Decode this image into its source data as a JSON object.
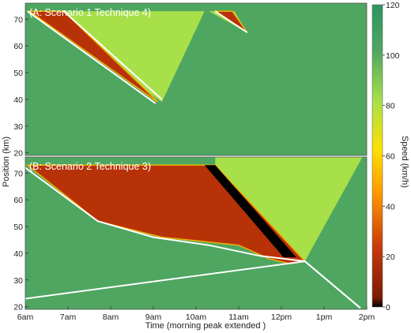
{
  "chart_data": [
    {
      "type": "heatmap",
      "label": "(A: Scenario 1 Technique 4)",
      "ylim": [
        19,
        76
      ],
      "yticks": [
        20,
        30,
        40,
        50,
        60,
        70
      ],
      "colors": {
        "free": "#4ea661",
        "queue": "#a8e04a",
        "jam": "#b83208"
      },
      "queue_regions": [
        {
          "points": [
            [
              6.25,
              73
            ],
            [
              9.2,
              39
            ],
            [
              10.2,
              73
            ]
          ]
        },
        {
          "points": [
            [
              10.3,
              73
            ],
            [
              11.2,
              65
            ],
            [
              10.9,
              73
            ]
          ]
        }
      ],
      "jam_regions": [
        {
          "points": [
            [
              6.1,
              73
            ],
            [
              6.9,
              73
            ],
            [
              9.05,
              40
            ],
            [
              9.1,
              39
            ]
          ]
        },
        {
          "points": [
            [
              10.45,
              73
            ],
            [
              10.85,
              73
            ],
            [
              11.2,
              65
            ]
          ]
        }
      ],
      "white_lines": [
        [
          [
            6.05,
            73
          ],
          [
            9.05,
            38.5
          ]
        ],
        [
          [
            6.9,
            73
          ],
          [
            9.2,
            40
          ]
        ],
        [
          [
            10.45,
            73
          ],
          [
            11.2,
            65
          ]
        ]
      ]
    },
    {
      "type": "heatmap",
      "label": "(B: Scenario 2 Technique 3)",
      "ylim": [
        19,
        76
      ],
      "yticks": [
        20,
        30,
        40,
        50,
        60,
        70
      ],
      "colors": {
        "free": "#4ea661",
        "queue": "#a8e04a",
        "jam": "#b83208",
        "stop": "#000000"
      },
      "queue_regions": [
        {
          "points": [
            [
              10.45,
              73
            ],
            [
              12.55,
              37
            ],
            [
              13.9,
              76
            ],
            [
              10.45,
              76
            ]
          ]
        }
      ],
      "jam_regions": [
        {
          "points": [
            [
              6.05,
              73
            ],
            [
              10.45,
              73
            ],
            [
              12.55,
              37
            ],
            [
              12.2,
              36
            ],
            [
              11.7,
              38
            ],
            [
              11.0,
              43
            ],
            [
              9.2,
              46
            ],
            [
              7.7,
              52
            ]
          ]
        }
      ],
      "stop_regions": [
        {
          "points": [
            [
              10.2,
              73
            ],
            [
              10.45,
              73
            ],
            [
              12.35,
              38.5
            ],
            [
              12.05,
              38.5
            ]
          ]
        }
      ],
      "white_lines": [
        [
          [
            6.0,
            72
          ],
          [
            7.7,
            52
          ],
          [
            9.0,
            46
          ],
          [
            10.3,
            43
          ],
          [
            11.5,
            39
          ],
          [
            12.55,
            37
          ],
          [
            13.85,
            19.5
          ]
        ],
        [
          [
            6.0,
            23
          ],
          [
            12.55,
            37
          ]
        ],
        [
          [
            12.55,
            37
          ],
          [
            13.85,
            19.5
          ]
        ]
      ]
    }
  ],
  "x_axis": {
    "label": "Time (morning peak extended )",
    "ticks": [
      {
        "v": 6,
        "label": "6am"
      },
      {
        "v": 7,
        "label": "7am"
      },
      {
        "v": 8,
        "label": "8am"
      },
      {
        "v": 9,
        "label": "9am"
      },
      {
        "v": 10,
        "label": "10am"
      },
      {
        "v": 11,
        "label": "11am"
      },
      {
        "v": 12,
        "label": "12pm"
      },
      {
        "v": 13,
        "label": "1pm"
      },
      {
        "v": 14,
        "label": "2pm"
      }
    ],
    "range": [
      6,
      14
    ]
  },
  "y_axis_label": "Position (km)",
  "colorbar": {
    "label": "Speed (km/h)",
    "range": [
      0,
      120
    ],
    "ticks": [
      0,
      20,
      40,
      60,
      80,
      100,
      120
    ]
  }
}
